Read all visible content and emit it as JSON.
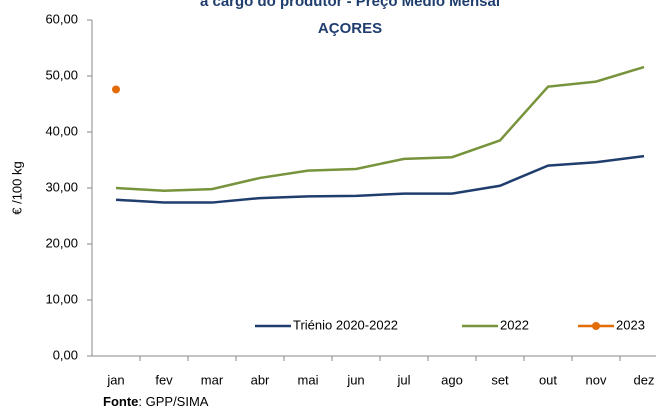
{
  "chart_data": {
    "type": "line",
    "title": [
      "a cargo do produtor -  Preço Médio Mensal",
      "AÇORES"
    ],
    "y_label": "€ /100 kg",
    "source_label": "Fonte",
    "source_text": ": GPP/SIMA",
    "categories": [
      "jan",
      "fev",
      "mar",
      "abr",
      "mai",
      "jun",
      "jul",
      "ago",
      "set",
      "out",
      "nov",
      "dez"
    ],
    "series": [
      {
        "name": "Triénio  2020-2022",
        "color": "#1f3e6e",
        "values": [
          27.9,
          27.4,
          27.4,
          28.2,
          28.5,
          28.6,
          29.0,
          29.0,
          30.4,
          34.0,
          34.6,
          35.7
        ]
      },
      {
        "name": "2022",
        "color": "#77933c",
        "values": [
          30.0,
          29.5,
          29.8,
          31.8,
          33.1,
          33.4,
          35.2,
          35.5,
          38.5,
          48.1,
          49.0,
          51.6
        ]
      },
      {
        "name": "2023",
        "color": "#e36c09",
        "marker": true,
        "values": [
          47.6,
          null,
          null,
          null,
          null,
          null,
          null,
          null,
          null,
          null,
          null,
          null
        ]
      }
    ],
    "ylim": [
      0,
      60
    ],
    "yticks": [
      {
        "value": 0,
        "label": "0,00"
      },
      {
        "value": 10,
        "label": "10,00"
      },
      {
        "value": 20,
        "label": "20,00"
      },
      {
        "value": 30,
        "label": "30,00"
      },
      {
        "value": 40,
        "label": "40,00"
      },
      {
        "value": 50,
        "label": "50,00"
      },
      {
        "value": 60,
        "label": "60,00"
      }
    ],
    "grid": false,
    "legend": "bottom-right"
  }
}
